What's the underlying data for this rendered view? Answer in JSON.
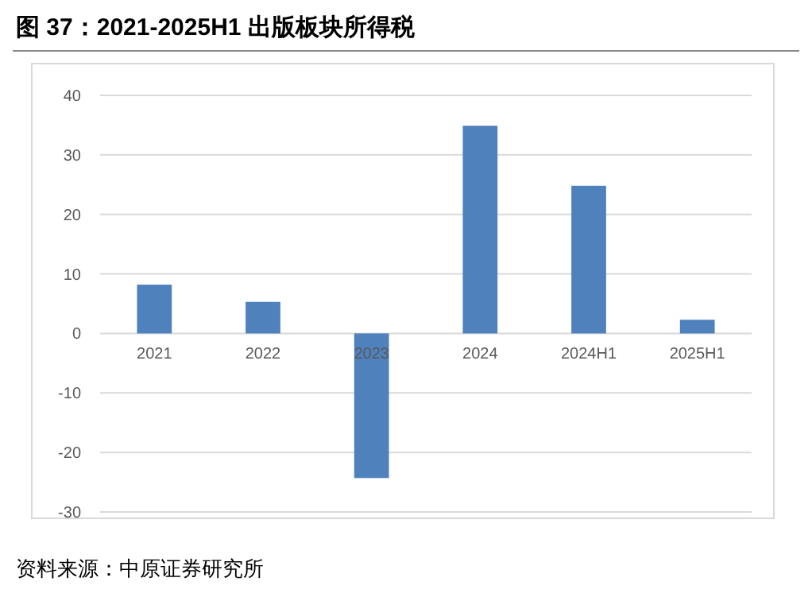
{
  "chart_data": {
    "type": "bar",
    "title": "图 37：2021-2025H1 出版板块所得税",
    "categories": [
      "2021",
      "2022",
      "2023",
      "2024",
      "2024H1",
      "2025H1"
    ],
    "values": [
      8.2,
      5.3,
      -24.3,
      34.9,
      24.8,
      2.3
    ],
    "color": "#4f81bd",
    "ylim": [
      -30,
      40
    ],
    "yticks": [
      -30,
      -20,
      -10,
      0,
      10,
      20,
      30,
      40
    ],
    "grid": "y",
    "annotations": [
      "资料来源：中原证券研究所"
    ]
  }
}
